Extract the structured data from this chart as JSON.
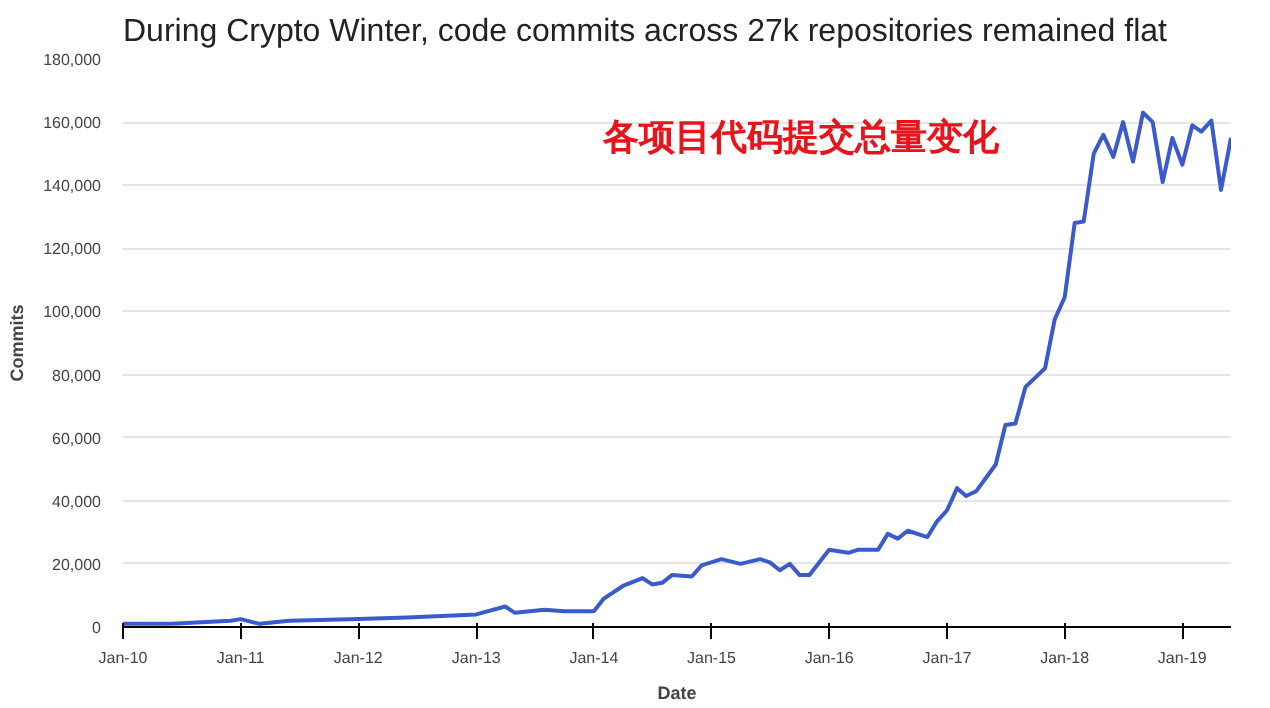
{
  "chart_data": {
    "type": "line",
    "title": "During Crypto Winter, code commits across 27k repositories remained flat",
    "subtitle": "各项目代码提交总量变化",
    "xlabel": "Date",
    "ylabel": "Commits",
    "x": [
      "2010-01",
      "2010-06",
      "2010-12",
      "2011-01",
      "2011-03",
      "2011-06",
      "2012-01",
      "2012-06",
      "2013-01",
      "2013-04",
      "2013-05",
      "2013-08",
      "2013-10",
      "2014-01",
      "2014-02",
      "2014-04",
      "2014-06",
      "2014-07",
      "2014-08",
      "2014-09",
      "2014-11",
      "2014-12",
      "2015-02",
      "2015-04",
      "2015-06",
      "2015-07",
      "2015-08",
      "2015-09",
      "2015-10",
      "2015-11",
      "2016-01",
      "2016-03",
      "2016-04",
      "2016-06",
      "2016-07",
      "2016-08",
      "2016-09",
      "2016-11",
      "2016-12",
      "2017-01",
      "2017-02",
      "2017-03",
      "2017-04",
      "2017-06",
      "2017-07",
      "2017-08",
      "2017-09",
      "2017-11",
      "2017-12",
      "2018-01",
      "2018-02",
      "2018-03",
      "2018-04",
      "2018-05",
      "2018-06",
      "2018-07",
      "2018-08",
      "2018-09",
      "2018-10",
      "2018-11",
      "2018-12",
      "2019-01",
      "2019-02",
      "2019-03",
      "2019-04",
      "2019-05",
      "2019-06"
    ],
    "series": [
      {
        "color": "#3b5bcc",
        "values": [
          1000,
          1000,
          2000,
          2500,
          1000,
          2000,
          2500,
          3000,
          4000,
          6500,
          4500,
          5500,
          5000,
          5000,
          9000,
          13000,
          15500,
          13500,
          14000,
          16500,
          16000,
          19500,
          21500,
          20000,
          21500,
          20500,
          18000,
          20000,
          16500,
          16500,
          24500,
          23500,
          24500,
          24500,
          29500,
          28000,
          30500,
          28500,
          33500,
          37000,
          44000,
          41500,
          43000,
          51500,
          64000,
          64500,
          76000,
          82000,
          97500,
          104500,
          128000,
          128500,
          150000,
          156000,
          149000,
          160000,
          147500,
          163000,
          160000,
          141000,
          155000,
          146500,
          159000,
          157000,
          160500,
          138500,
          155000
        ]
      }
    ],
    "xlim": [
      "2010-01",
      "2019-06"
    ],
    "xticks": [
      {
        "value": "2010-01",
        "label": "Jan-10"
      },
      {
        "value": "2011-01",
        "label": "Jan-11"
      },
      {
        "value": "2012-01",
        "label": "Jan-12"
      },
      {
        "value": "2013-01",
        "label": "Jan-13"
      },
      {
        "value": "2014-01",
        "label": "Jan-14"
      },
      {
        "value": "2015-01",
        "label": "Jan-15"
      },
      {
        "value": "2016-01",
        "label": "Jan-16"
      },
      {
        "value": "2017-01",
        "label": "Jan-17"
      },
      {
        "value": "2018-01",
        "label": "Jan-18"
      },
      {
        "value": "2019-01",
        "label": "Jan-19"
      }
    ],
    "ylim": [
      0,
      180000
    ],
    "yticks": [
      0,
      {
        "value": 20000,
        "label": "20,000"
      },
      {
        "value": 40000,
        "label": "40,000"
      },
      {
        "value": 60000,
        "label": "60,000"
      },
      {
        "value": 80000,
        "label": "80,000"
      },
      {
        "value": 100000,
        "label": "100,000"
      },
      {
        "value": 120000,
        "label": "120,000"
      },
      {
        "value": 140000,
        "label": "140,000"
      },
      {
        "value": 160000,
        "label": "160,000"
      },
      {
        "value": 180000,
        "label": "180,000"
      }
    ],
    "grid": "y",
    "line_style": "solid"
  }
}
